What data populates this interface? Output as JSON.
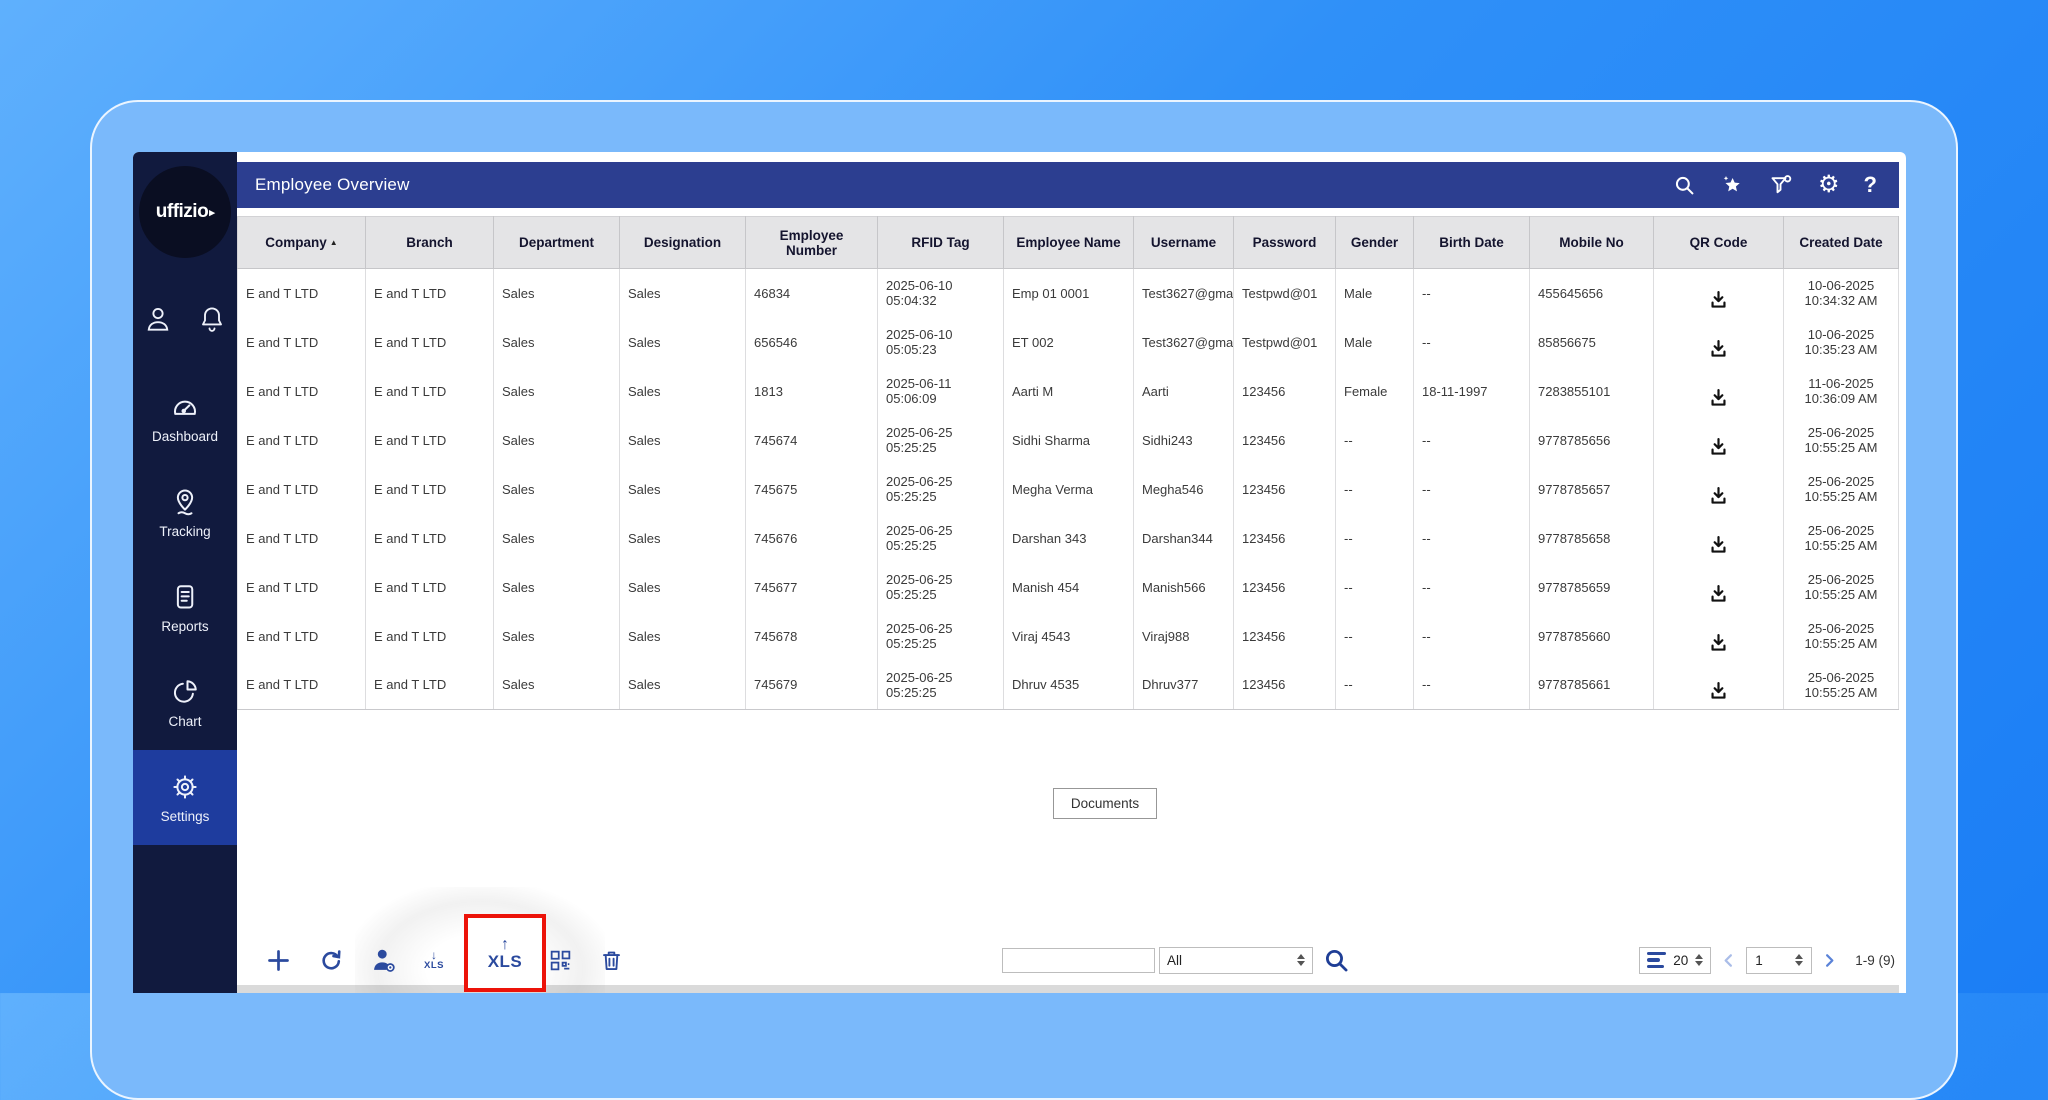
{
  "colors": {
    "accent": "#2b4a9e",
    "header_bar": "#2c3e90",
    "sidebar": "#111a3e",
    "active_item": "#1e3c9e",
    "highlight_red": "#ec1309"
  },
  "sidebar": {
    "logo_text": "uffizio",
    "items": [
      {
        "label": "Dashboard"
      },
      {
        "label": "Tracking"
      },
      {
        "label": "Reports"
      },
      {
        "label": "Chart"
      },
      {
        "label": "Settings",
        "active": true
      }
    ]
  },
  "header": {
    "title": "Employee Overview"
  },
  "table": {
    "columns": [
      {
        "label": "Company",
        "sort": "asc"
      },
      {
        "label": "Branch"
      },
      {
        "label": "Department"
      },
      {
        "label": "Designation"
      },
      {
        "label": "Employee Number"
      },
      {
        "label": "RFID Tag"
      },
      {
        "label": "Employee Name"
      },
      {
        "label": "Username"
      },
      {
        "label": "Password"
      },
      {
        "label": "Gender"
      },
      {
        "label": "Birth Date"
      },
      {
        "label": "Mobile No"
      },
      {
        "label": "QR Code"
      },
      {
        "label": "Created Date"
      }
    ],
    "rows": [
      {
        "company": "E and T LTD",
        "branch": "E and T LTD",
        "department": "Sales",
        "designation": "Sales",
        "employee_number": "46834",
        "rfid_tag": "2025-06-10\n05:04:32",
        "employee_name": "Emp 01 0001",
        "username": "Test3627@gma",
        "password": "Testpwd@01",
        "gender": "Male",
        "birth_date": "--",
        "mobile_no": "455645656",
        "created_date": "10-06-2025\n10:34:32 AM"
      },
      {
        "company": "E and T LTD",
        "branch": "E and T LTD",
        "department": "Sales",
        "designation": "Sales",
        "employee_number": "656546",
        "rfid_tag": "2025-06-10\n05:05:23",
        "employee_name": "ET 002",
        "username": "Test3627@gma",
        "password": "Testpwd@01",
        "gender": "Male",
        "birth_date": "--",
        "mobile_no": "85856675",
        "created_date": "10-06-2025\n10:35:23 AM"
      },
      {
        "company": "E and T LTD",
        "branch": "E and T LTD",
        "department": "Sales",
        "designation": "Sales",
        "employee_number": "1813",
        "rfid_tag": "2025-06-11\n05:06:09",
        "employee_name": "Aarti M",
        "username": "Aarti",
        "password": "123456",
        "gender": "Female",
        "birth_date": "18-11-1997",
        "mobile_no": "7283855101",
        "created_date": "11-06-2025\n10:36:09 AM"
      },
      {
        "company": "E and T LTD",
        "branch": "E and T LTD",
        "department": "Sales",
        "designation": "Sales",
        "employee_number": "745674",
        "rfid_tag": "2025-06-25\n05:25:25",
        "employee_name": "Sidhi Sharma",
        "username": "Sidhi243",
        "password": "123456",
        "gender": "--",
        "birth_date": "--",
        "mobile_no": "9778785656",
        "created_date": "25-06-2025\n10:55:25 AM"
      },
      {
        "company": "E and T LTD",
        "branch": "E and T LTD",
        "department": "Sales",
        "designation": "Sales",
        "employee_number": "745675",
        "rfid_tag": "2025-06-25\n05:25:25",
        "employee_name": "Megha Verma",
        "username": "Megha546",
        "password": "123456",
        "gender": "--",
        "birth_date": "--",
        "mobile_no": "9778785657",
        "created_date": "25-06-2025\n10:55:25 AM"
      },
      {
        "company": "E and T LTD",
        "branch": "E and T LTD",
        "department": "Sales",
        "designation": "Sales",
        "employee_number": "745676",
        "rfid_tag": "2025-06-25\n05:25:25",
        "employee_name": "Darshan 343",
        "username": "Darshan344",
        "password": "123456",
        "gender": "--",
        "birth_date": "--",
        "mobile_no": "9778785658",
        "created_date": "25-06-2025\n10:55:25 AM"
      },
      {
        "company": "E and T LTD",
        "branch": "E and T LTD",
        "department": "Sales",
        "designation": "Sales",
        "employee_number": "745677",
        "rfid_tag": "2025-06-25\n05:25:25",
        "employee_name": "Manish 454",
        "username": "Manish566",
        "password": "123456",
        "gender": "--",
        "birth_date": "--",
        "mobile_no": "9778785659",
        "created_date": "25-06-2025\n10:55:25 AM"
      },
      {
        "company": "E and T LTD",
        "branch": "E and T LTD",
        "department": "Sales",
        "designation": "Sales",
        "employee_number": "745678",
        "rfid_tag": "2025-06-25\n05:25:25",
        "employee_name": "Viraj 4543",
        "username": "Viraj988",
        "password": "123456",
        "gender": "--",
        "birth_date": "--",
        "mobile_no": "9778785660",
        "created_date": "25-06-2025\n10:55:25 AM"
      },
      {
        "company": "E and T LTD",
        "branch": "E and T LTD",
        "department": "Sales",
        "designation": "Sales",
        "employee_number": "745679",
        "rfid_tag": "2025-06-25\n05:25:25",
        "employee_name": "Dhruv 4535",
        "username": "Dhruv377",
        "password": "123456",
        "gender": "--",
        "birth_date": "--",
        "mobile_no": "9778785661",
        "created_date": "25-06-2025\n10:55:25 AM"
      }
    ]
  },
  "content": {
    "documents_label": "Documents"
  },
  "toolbar": {
    "xls_download_label": "XLS",
    "xls_upload_label": "XLS"
  },
  "search": {
    "query_value": "",
    "filter_value": "All"
  },
  "pagination": {
    "page_size": "20",
    "page": "1",
    "range_label": "1-9 (9)"
  }
}
